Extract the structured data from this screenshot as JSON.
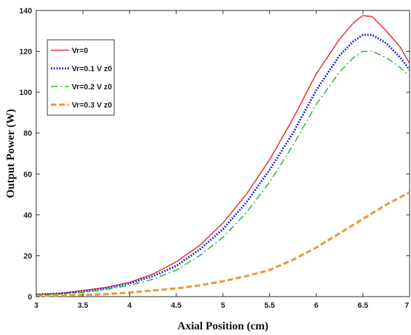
{
  "chart_data": {
    "type": "line",
    "xlabel": "Axial Position (cm)",
    "ylabel": "Output Power (W)",
    "xlim": [
      3,
      7
    ],
    "ylim": [
      0,
      140
    ],
    "xticks": [
      "3",
      "3.5",
      "4",
      "4.5",
      "5",
      "5.5",
      "6",
      "6.5",
      "7"
    ],
    "yticks": [
      "0",
      "20",
      "40",
      "60",
      "80",
      "100",
      "120",
      "140"
    ],
    "legend_position": "upper-left",
    "grid": false,
    "series": [
      {
        "name": "Vr=0",
        "color": "#e8343a",
        "style": "solid",
        "x": [
          3.0,
          3.25,
          3.5,
          3.75,
          4.0,
          4.25,
          4.5,
          4.75,
          5.0,
          5.25,
          5.5,
          5.75,
          6.0,
          6.25,
          6.4,
          6.5,
          6.6,
          6.75,
          6.9,
          7.0
        ],
        "y": [
          1,
          1.5,
          3,
          4.5,
          7,
          11,
          17,
          25,
          36,
          50,
          67,
          87,
          109,
          126,
          134,
          137.5,
          137,
          130,
          122,
          114
        ]
      },
      {
        "name": "Vr=0.1 V z0",
        "color": "#1f2ad6",
        "style": "dotted",
        "x": [
          3.0,
          3.25,
          3.5,
          3.75,
          4.0,
          4.25,
          4.5,
          4.75,
          5.0,
          5.25,
          5.5,
          5.75,
          6.0,
          6.25,
          6.4,
          6.5,
          6.6,
          6.75,
          6.9,
          7.0
        ],
        "y": [
          1,
          1.5,
          2.5,
          4,
          6.5,
          10,
          15,
          23,
          33,
          46,
          62,
          80,
          101,
          118,
          125,
          128,
          128,
          124,
          117,
          111
        ]
      },
      {
        "name": "Vr=0.2 V z0",
        "color": "#22c02b",
        "style": "dashdot",
        "x": [
          3.0,
          3.25,
          3.5,
          3.75,
          4.0,
          4.25,
          4.5,
          4.75,
          5.0,
          5.25,
          5.5,
          5.75,
          6.0,
          6.25,
          6.4,
          6.5,
          6.6,
          6.75,
          6.9,
          7.0
        ],
        "y": [
          0.8,
          1.2,
          2,
          3.5,
          5.5,
          8.5,
          13,
          20,
          29,
          41,
          56,
          74,
          94,
          110,
          117,
          120,
          120,
          117,
          112,
          108
        ]
      },
      {
        "name": "Vr=0.3 V z0",
        "color": "#f0963a",
        "style": "dashed",
        "x": [
          3.0,
          3.25,
          3.5,
          3.75,
          4.0,
          4.25,
          4.5,
          4.75,
          5.0,
          5.25,
          5.5,
          5.75,
          6.0,
          6.25,
          6.5,
          6.75,
          7.0
        ],
        "y": [
          0.3,
          0.5,
          0.8,
          1.2,
          2,
          3,
          4,
          5.5,
          7.5,
          10,
          13,
          18,
          24,
          31,
          38,
          45,
          51
        ]
      }
    ]
  }
}
